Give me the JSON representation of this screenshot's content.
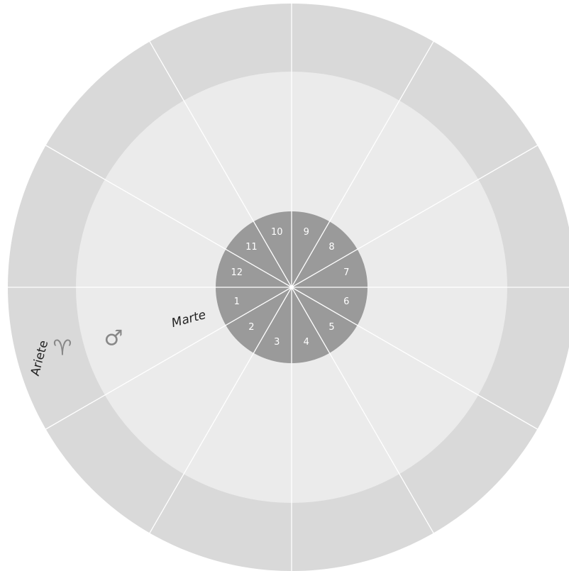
{
  "houses": [
    "1",
    "2",
    "3",
    "4",
    "5",
    "6",
    "7",
    "8",
    "9",
    "10",
    "11",
    "12"
  ],
  "sign": {
    "name": "Ariete",
    "symbol": "♈"
  },
  "planet": {
    "name": "Marte",
    "symbol": "♂"
  }
}
